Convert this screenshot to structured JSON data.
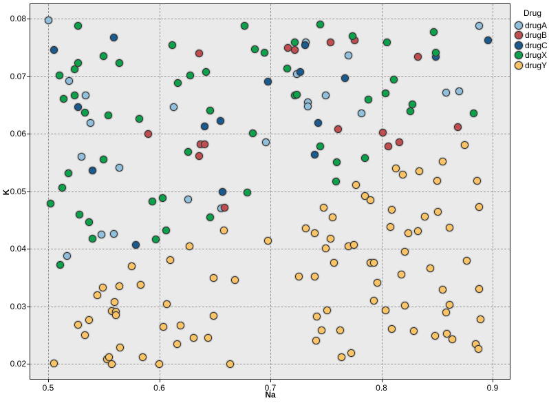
{
  "axes": {
    "x": {
      "label": "Na",
      "tick_values": [
        0.5,
        0.6,
        0.7,
        0.8,
        0.9
      ],
      "tick_labels": [
        "0.5",
        "0.6",
        "0.7",
        "0.8",
        "0.9"
      ],
      "min": 0.483,
      "max": 0.916
    },
    "y": {
      "label": "K",
      "tick_values": [
        0.02,
        0.03,
        0.04,
        0.05,
        0.06,
        0.07,
        0.08
      ],
      "tick_labels": [
        "0.02",
        "0.03",
        "0.04",
        "0.05",
        "0.06",
        "0.07",
        "0.08"
      ],
      "min": 0.0172,
      "max": 0.0826
    }
  },
  "legend": {
    "title": "Drug",
    "items": [
      {
        "label": "drugA",
        "color": "#92c0dc"
      },
      {
        "label": "drugB",
        "color": "#c04d50"
      },
      {
        "label": "drugC",
        "color": "#1b5a8f"
      },
      {
        "label": "drugX",
        "color": "#0da14c"
      },
      {
        "label": "drugY",
        "color": "#fbc567"
      }
    ]
  },
  "style_colors": {
    "plot_background": "#eaeaea",
    "gridline": "#949494",
    "plot_border": "#161616"
  },
  "chart_data": {
    "type": "scatter",
    "title": "",
    "xlabel": "Na",
    "ylabel": "K",
    "xlim": [
      0.483,
      0.916
    ],
    "ylim": [
      0.0172,
      0.0826
    ],
    "grid": "dashed, at every tick",
    "legend_position": "top-right outside",
    "series": [
      {
        "name": "drugA",
        "color": "#92c0dc",
        "points": [
          [
            0.5,
            0.0797
          ],
          [
            0.519,
            0.0692
          ],
          [
            0.534,
            0.0666
          ],
          [
            0.538,
            0.0618
          ],
          [
            0.613,
            0.0646
          ],
          [
            0.732,
            0.0759
          ],
          [
            0.724,
            0.0703
          ],
          [
            0.75,
            0.0667
          ],
          [
            0.734,
            0.0655
          ],
          [
            0.734,
            0.0647
          ],
          [
            0.77,
            0.0736
          ],
          [
            0.888,
            0.0788
          ],
          [
            0.858,
            0.0671
          ],
          [
            0.87,
            0.0674
          ],
          [
            0.782,
            0.0635
          ],
          [
            0.53,
            0.056
          ],
          [
            0.564,
            0.0541
          ],
          [
            0.626,
            0.0486
          ],
          [
            0.548,
            0.0425
          ],
          [
            0.559,
            0.0426
          ],
          [
            0.696,
            0.0585
          ],
          [
            0.656,
            0.047
          ],
          [
            0.517,
            0.0388
          ]
        ]
      },
      {
        "name": "drugB",
        "color": "#c04d50",
        "points": [
          [
            0.636,
            0.0739
          ],
          [
            0.716,
            0.0749
          ],
          [
            0.722,
            0.0746
          ],
          [
            0.754,
            0.0759
          ],
          [
            0.776,
            0.0762
          ],
          [
            0.833,
            0.0734
          ],
          [
            0.869,
            0.0611
          ],
          [
            0.59,
            0.0599
          ],
          [
            0.637,
            0.0581
          ],
          [
            0.641,
            0.0581
          ],
          [
            0.636,
            0.0561
          ],
          [
            0.659,
            0.0471
          ],
          [
            0.761,
            0.0608
          ],
          [
            0.801,
            0.0602
          ],
          [
            0.806,
            0.0578
          ],
          [
            0.816,
            0.0585
          ]
        ]
      },
      {
        "name": "drugC",
        "color": "#1b5a8f",
        "points": [
          [
            0.505,
            0.0746
          ],
          [
            0.559,
            0.0767
          ],
          [
            0.527,
            0.0646
          ],
          [
            0.731,
            0.0754
          ],
          [
            0.727,
            0.0707
          ],
          [
            0.767,
            0.0696
          ],
          [
            0.698,
            0.069
          ],
          [
            0.655,
            0.0622
          ],
          [
            0.641,
            0.0613
          ],
          [
            0.743,
            0.0619
          ],
          [
            0.896,
            0.0762
          ],
          [
            0.849,
            0.0734
          ],
          [
            0.54,
            0.0536
          ],
          [
            0.579,
            0.0406
          ],
          [
            0.657,
            0.0499
          ],
          [
            0.74,
            0.0564
          ]
        ]
      },
      {
        "name": "drugX",
        "color": "#0da14c",
        "points": [
          [
            0.527,
            0.0788
          ],
          [
            0.612,
            0.0754
          ],
          [
            0.55,
            0.0735
          ],
          [
            0.527,
            0.0723
          ],
          [
            0.564,
            0.0723
          ],
          [
            0.524,
            0.0712
          ],
          [
            0.51,
            0.0701
          ],
          [
            0.628,
            0.0701
          ],
          [
            0.617,
            0.0688
          ],
          [
            0.524,
            0.0667
          ],
          [
            0.514,
            0.066
          ],
          [
            0.533,
            0.0636
          ],
          [
            0.554,
            0.0632
          ],
          [
            0.582,
            0.0626
          ],
          [
            0.677,
            0.0787
          ],
          [
            0.745,
            0.079
          ],
          [
            0.686,
            0.0747
          ],
          [
            0.695,
            0.0741
          ],
          [
            0.722,
            0.0759
          ],
          [
            0.642,
            0.0707
          ],
          [
            0.715,
            0.0713
          ],
          [
            0.722,
            0.0667
          ],
          [
            0.724,
            0.0668
          ],
          [
            0.646,
            0.064
          ],
          [
            0.774,
            0.077
          ],
          [
            0.847,
            0.0777
          ],
          [
            0.805,
            0.0759
          ],
          [
            0.849,
            0.0741
          ],
          [
            0.811,
            0.0694
          ],
          [
            0.804,
            0.067
          ],
          [
            0.788,
            0.0659
          ],
          [
            0.828,
            0.0651
          ],
          [
            0.826,
            0.0639
          ],
          [
            0.883,
            0.0635
          ],
          [
            0.55,
            0.0555
          ],
          [
            0.518,
            0.0531
          ],
          [
            0.513,
            0.0506
          ],
          [
            0.626,
            0.0568
          ],
          [
            0.502,
            0.0478
          ],
          [
            0.594,
            0.0482
          ],
          [
            0.603,
            0.0488
          ],
          [
            0.528,
            0.0459
          ],
          [
            0.537,
            0.0446
          ],
          [
            0.54,
            0.0417
          ],
          [
            0.606,
            0.0432
          ],
          [
            0.597,
            0.0416
          ],
          [
            0.684,
            0.0601
          ],
          [
            0.745,
            0.0578
          ],
          [
            0.76,
            0.055
          ],
          [
            0.759,
            0.0517
          ],
          [
            0.679,
            0.0498
          ],
          [
            0.646,
            0.0454
          ],
          [
            0.785,
            0.0558
          ],
          [
            0.511,
            0.0372
          ]
        ]
      },
      {
        "name": "drugY",
        "color": "#fbc567",
        "points": [
          [
            0.627,
            0.0404
          ],
          [
            0.658,
            0.0432
          ],
          [
            0.748,
            0.0471
          ],
          [
            0.756,
            0.0454
          ],
          [
            0.732,
            0.0435
          ],
          [
            0.74,
            0.0427
          ],
          [
            0.754,
            0.0417
          ],
          [
            0.698,
            0.0414
          ],
          [
            0.75,
            0.0401
          ],
          [
            0.77,
            0.0404
          ],
          [
            0.875,
            0.058
          ],
          [
            0.855,
            0.0551
          ],
          [
            0.813,
            0.0539
          ],
          [
            0.819,
            0.0529
          ],
          [
            0.834,
            0.0535
          ],
          [
            0.85,
            0.0518
          ],
          [
            0.886,
            0.0518
          ],
          [
            0.777,
            0.0511
          ],
          [
            0.785,
            0.0492
          ],
          [
            0.79,
            0.0484
          ],
          [
            0.888,
            0.0473
          ],
          [
            0.809,
            0.0468
          ],
          [
            0.851,
            0.0464
          ],
          [
            0.839,
            0.0456
          ],
          [
            0.808,
            0.0438
          ],
          [
            0.861,
            0.0436
          ],
          [
            0.824,
            0.0427
          ],
          [
            0.833,
            0.0431
          ],
          [
            0.775,
            0.0406
          ],
          [
            0.821,
            0.0395
          ],
          [
            0.61,
            0.038
          ],
          [
            0.575,
            0.037
          ],
          [
            0.549,
            0.0332
          ],
          [
            0.564,
            0.0335
          ],
          [
            0.583,
            0.0337
          ],
          [
            0.544,
            0.0319
          ],
          [
            0.56,
            0.0307
          ],
          [
            0.607,
            0.0304
          ],
          [
            0.557,
            0.0292
          ],
          [
            0.561,
            0.0291
          ],
          [
            0.561,
            0.0285
          ],
          [
            0.537,
            0.0276
          ],
          [
            0.527,
            0.0268
          ],
          [
            0.533,
            0.025
          ],
          [
            0.604,
            0.0264
          ],
          [
            0.619,
            0.0267
          ],
          [
            0.616,
            0.0234
          ],
          [
            0.565,
            0.0228
          ],
          [
            0.553,
            0.0208
          ],
          [
            0.555,
            0.0211
          ],
          [
            0.585,
            0.0211
          ],
          [
            0.505,
            0.0201
          ],
          [
            0.557,
            0.02
          ],
          [
            0.6,
            0.02
          ],
          [
            0.757,
            0.0375
          ],
          [
            0.649,
            0.0349
          ],
          [
            0.668,
            0.0345
          ],
          [
            0.726,
            0.0351
          ],
          [
            0.74,
            0.0351
          ],
          [
            0.751,
            0.0293
          ],
          [
            0.742,
            0.0282
          ],
          [
            0.649,
            0.0283
          ],
          [
            0.746,
            0.0258
          ],
          [
            0.763,
            0.0258
          ],
          [
            0.741,
            0.024
          ],
          [
            0.631,
            0.0245
          ],
          [
            0.644,
            0.0245
          ],
          [
            0.764,
            0.0211
          ],
          [
            0.664,
            0.02
          ],
          [
            0.79,
            0.0375
          ],
          [
            0.793,
            0.0376
          ],
          [
            0.877,
            0.0379
          ],
          [
            0.844,
            0.0366
          ],
          [
            0.818,
            0.0355
          ],
          [
            0.796,
            0.0341
          ],
          [
            0.855,
            0.0329
          ],
          [
            0.888,
            0.033
          ],
          [
            0.793,
            0.031
          ],
          [
            0.821,
            0.0301
          ],
          [
            0.804,
            0.0293
          ],
          [
            0.861,
            0.0302
          ],
          [
            0.858,
            0.0289
          ],
          [
            0.889,
            0.0277
          ],
          [
            0.809,
            0.0261
          ],
          [
            0.829,
            0.0257
          ],
          [
            0.848,
            0.0248
          ],
          [
            0.859,
            0.0252
          ],
          [
            0.864,
            0.0243
          ],
          [
            0.885,
            0.0234
          ],
          [
            0.887,
            0.0226
          ],
          [
            0.773,
            0.0219
          ]
        ]
      }
    ]
  }
}
